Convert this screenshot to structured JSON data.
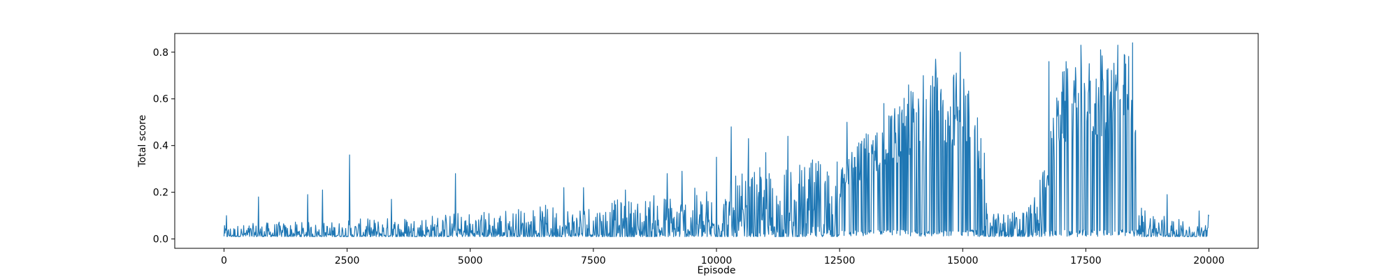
{
  "chart_data": {
    "type": "line",
    "title": "",
    "xlabel": "Episode",
    "ylabel": "Total score",
    "xlim": [
      -1000,
      21000
    ],
    "ylim": [
      -0.04,
      0.88
    ],
    "xticks": [
      0,
      2500,
      5000,
      7500,
      10000,
      12500,
      15000,
      17500,
      20000
    ],
    "xtick_labels": [
      "0",
      "2500",
      "5000",
      "7500",
      "10000",
      "12500",
      "15000",
      "17500",
      "20000"
    ],
    "yticks": [
      0.0,
      0.2,
      0.4,
      0.6,
      0.8
    ],
    "ytick_labels": [
      "0.0",
      "0.2",
      "0.4",
      "0.6",
      "0.8"
    ],
    "grid": false,
    "legend": "none",
    "series_color": "#1f77b4",
    "episodes": 20000,
    "baseline_floor": 0.01,
    "envelope": {
      "x": [
        0,
        1000,
        2000,
        3000,
        4000,
        5000,
        6000,
        7000,
        8000,
        9000,
        10000,
        10500,
        11000,
        11500,
        12000,
        12500,
        13000,
        13500,
        14000,
        14500,
        15000,
        15300,
        15500,
        16000,
        16500,
        17000,
        17500,
        18000,
        18500,
        18600,
        19000,
        19500,
        19700,
        20000
      ],
      "typical_max": [
        0.04,
        0.05,
        0.05,
        0.06,
        0.07,
        0.08,
        0.09,
        0.1,
        0.11,
        0.13,
        0.15,
        0.18,
        0.2,
        0.2,
        0.22,
        0.3,
        0.45,
        0.55,
        0.65,
        0.72,
        0.72,
        0.62,
        0.08,
        0.08,
        0.12,
        0.72,
        0.76,
        0.8,
        0.8,
        0.1,
        0.08,
        0.05,
        0.03,
        0.08
      ]
    },
    "peaks": [
      {
        "x": 50,
        "y": 0.1
      },
      {
        "x": 700,
        "y": 0.18
      },
      {
        "x": 1700,
        "y": 0.19
      },
      {
        "x": 2000,
        "y": 0.21
      },
      {
        "x": 2550,
        "y": 0.36
      },
      {
        "x": 3400,
        "y": 0.17
      },
      {
        "x": 4700,
        "y": 0.28
      },
      {
        "x": 6900,
        "y": 0.22
      },
      {
        "x": 7300,
        "y": 0.22
      },
      {
        "x": 8150,
        "y": 0.21
      },
      {
        "x": 9000,
        "y": 0.28
      },
      {
        "x": 9300,
        "y": 0.29
      },
      {
        "x": 10000,
        "y": 0.35
      },
      {
        "x": 10300,
        "y": 0.48
      },
      {
        "x": 10650,
        "y": 0.43
      },
      {
        "x": 11000,
        "y": 0.37
      },
      {
        "x": 11450,
        "y": 0.44
      },
      {
        "x": 12050,
        "y": 0.29
      },
      {
        "x": 12450,
        "y": 0.33
      },
      {
        "x": 12650,
        "y": 0.5
      },
      {
        "x": 13000,
        "y": 0.43
      },
      {
        "x": 13400,
        "y": 0.58
      },
      {
        "x": 13900,
        "y": 0.66
      },
      {
        "x": 14200,
        "y": 0.7
      },
      {
        "x": 14450,
        "y": 0.77
      },
      {
        "x": 14950,
        "y": 0.8
      },
      {
        "x": 16750,
        "y": 0.76
      },
      {
        "x": 17100,
        "y": 0.76
      },
      {
        "x": 17400,
        "y": 0.83
      },
      {
        "x": 17800,
        "y": 0.81
      },
      {
        "x": 18150,
        "y": 0.83
      },
      {
        "x": 18450,
        "y": 0.84
      },
      {
        "x": 19150,
        "y": 0.19
      },
      {
        "x": 19800,
        "y": 0.12
      }
    ]
  }
}
